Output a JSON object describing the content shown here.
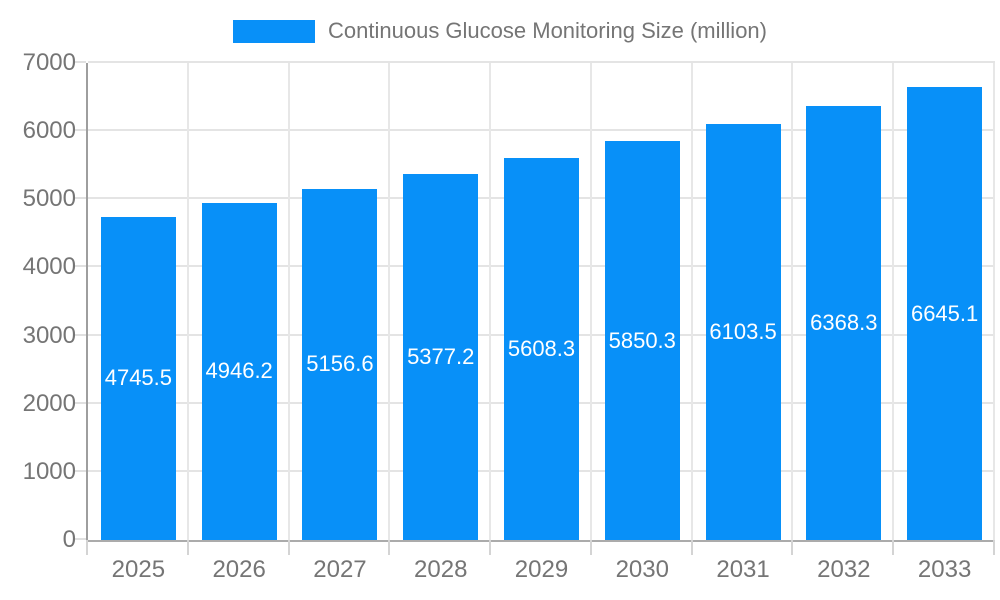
{
  "chart_data": {
    "type": "bar",
    "title": "Continuous Glucose Monitoring Size (million)",
    "categories": [
      "2025",
      "2026",
      "2027",
      "2028",
      "2029",
      "2030",
      "2031",
      "2032",
      "2033"
    ],
    "values": [
      4745.5,
      4946.2,
      5156.6,
      5377.2,
      5608.3,
      5850.3,
      6103.5,
      6368.3,
      6645.1
    ],
    "value_labels": [
      "4745.5",
      "4946.2",
      "5156.6",
      "5377.2",
      "5608.3",
      "5850.3",
      "6103.5",
      "6368.3",
      "6645.1"
    ],
    "xlabel": "",
    "ylabel": "",
    "ylim": [
      0,
      7000
    ],
    "yticks": [
      0,
      1000,
      2000,
      3000,
      4000,
      5000,
      6000,
      7000
    ],
    "grid": true,
    "legend_position": "top",
    "colors": {
      "bar": "#0890f8",
      "grid": "#e4e4e4",
      "axis": "#a6a6a6",
      "tick_text": "#757575",
      "value_text": "#ffffff"
    }
  }
}
